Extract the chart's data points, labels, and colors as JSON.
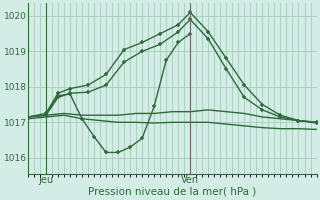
{
  "background_color": "#d4ece6",
  "grid_color": "#a8ccbe",
  "line_color": "#2d6b3a",
  "ven_line_color": "#666666",
  "title": "Pression niveau de la mer( hPa )",
  "xlabel_jeu": "Jeu",
  "xlabel_ven": "Ven",
  "ylim": [
    1015.55,
    1020.35
  ],
  "yticks": [
    1016,
    1017,
    1018,
    1019,
    1020
  ],
  "xlim": [
    0,
    48
  ],
  "jeu_x": 3,
  "ven_x": 27,
  "series": {
    "line_dip": {
      "x": [
        3,
        5,
        7,
        9,
        11,
        13,
        15,
        17,
        19,
        21,
        23,
        25,
        27
      ],
      "y": [
        1017.2,
        1017.75,
        1017.8,
        1017.1,
        1016.6,
        1016.15,
        1016.15,
        1016.3,
        1016.55,
        1017.45,
        1018.75,
        1019.25,
        1019.5
      ],
      "marker": "+",
      "lw": 1.0
    },
    "line_flat1": {
      "x": [
        0,
        3,
        6,
        9,
        12,
        15,
        18,
        21,
        24,
        27,
        30,
        33,
        36,
        39,
        42,
        45,
        48
      ],
      "y": [
        1017.15,
        1017.2,
        1017.25,
        1017.2,
        1017.2,
        1017.2,
        1017.25,
        1017.25,
        1017.3,
        1017.3,
        1017.35,
        1017.3,
        1017.25,
        1017.15,
        1017.1,
        1017.05,
        1017.0
      ],
      "marker": null,
      "lw": 1.0
    },
    "line_flat2": {
      "x": [
        0,
        3,
        6,
        9,
        12,
        15,
        18,
        21,
        24,
        27,
        30,
        33,
        36,
        39,
        42,
        45,
        48
      ],
      "y": [
        1017.1,
        1017.15,
        1017.2,
        1017.1,
        1017.05,
        1017.0,
        1017.0,
        1016.98,
        1017.0,
        1017.0,
        1017.0,
        1016.95,
        1016.9,
        1016.85,
        1016.82,
        1016.82,
        1016.8
      ],
      "marker": null,
      "lw": 1.0
    },
    "line_rise1": {
      "x": [
        0,
        3,
        5,
        7,
        10,
        13,
        16,
        19,
        22,
        25,
        27,
        30,
        33,
        36,
        39,
        42,
        45,
        48
      ],
      "y": [
        1017.15,
        1017.2,
        1017.7,
        1017.82,
        1017.85,
        1018.05,
        1018.7,
        1019.0,
        1019.2,
        1019.55,
        1019.9,
        1019.35,
        1018.5,
        1017.7,
        1017.35,
        1017.15,
        1017.05,
        1017.0
      ],
      "marker": "+",
      "lw": 1.0
    },
    "line_rise2": {
      "x": [
        0,
        3,
        5,
        7,
        10,
        13,
        16,
        19,
        22,
        25,
        27,
        30,
        33,
        36,
        39,
        42,
        45,
        48
      ],
      "y": [
        1017.15,
        1017.25,
        1017.82,
        1017.95,
        1018.05,
        1018.35,
        1019.05,
        1019.25,
        1019.5,
        1019.75,
        1020.1,
        1019.55,
        1018.8,
        1018.05,
        1017.5,
        1017.2,
        1017.05,
        1016.98
      ],
      "marker": "+",
      "lw": 1.0
    }
  }
}
